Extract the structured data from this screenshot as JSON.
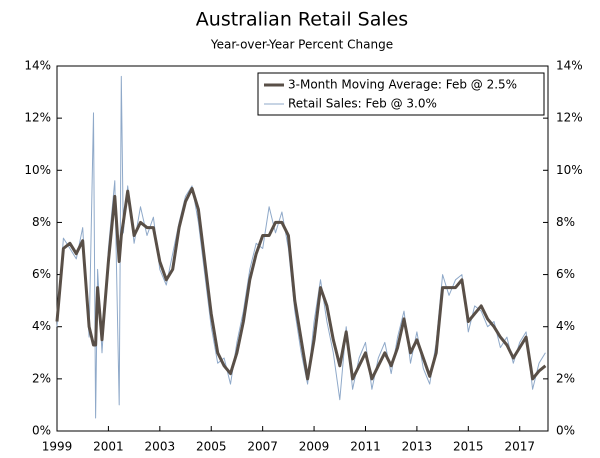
{
  "chart_data": {
    "type": "line",
    "title": "Australian Retail Sales",
    "subtitle": "Year-over-Year Percent Change",
    "x": [
      1999,
      1999.25,
      1999.5,
      1999.75,
      2000,
      2000.25,
      2000.42,
      2000.5,
      2000.58,
      2000.75,
      2001,
      2001.25,
      2001.42,
      2001.5,
      2001.58,
      2001.75,
      2002,
      2002.25,
      2002.5,
      2002.75,
      2003,
      2003.25,
      2003.5,
      2003.75,
      2004,
      2004.25,
      2004.5,
      2004.75,
      2005,
      2005.25,
      2005.5,
      2005.75,
      2006,
      2006.25,
      2006.5,
      2006.75,
      2007,
      2007.25,
      2007.5,
      2007.75,
      2008,
      2008.25,
      2008.5,
      2008.75,
      2009,
      2009.25,
      2009.5,
      2009.75,
      2010,
      2010.25,
      2010.5,
      2010.75,
      2011,
      2011.25,
      2011.5,
      2011.75,
      2012,
      2012.25,
      2012.5,
      2012.75,
      2013,
      2013.25,
      2013.5,
      2013.75,
      2014,
      2014.25,
      2014.5,
      2014.75,
      2015,
      2015.25,
      2015.5,
      2015.75,
      2016,
      2016.25,
      2016.5,
      2016.75,
      2017,
      2017.25,
      2017.5,
      2017.75,
      2018
    ],
    "series": [
      {
        "name": "Retail Sales: Feb @ 3.0%",
        "color": "#8fa9c9",
        "width": 1,
        "values": [
          4.0,
          7.4,
          7.0,
          6.6,
          7.8,
          3.6,
          12.2,
          0.5,
          6.2,
          3.0,
          7.0,
          9.6,
          1.0,
          13.6,
          7.6,
          9.4,
          7.2,
          8.6,
          7.5,
          8.2,
          6.2,
          5.6,
          6.8,
          8.0,
          9.0,
          9.4,
          8.0,
          6.0,
          4.0,
          2.6,
          2.8,
          1.8,
          3.4,
          4.6,
          6.2,
          7.2,
          7.0,
          8.6,
          7.6,
          8.4,
          7.0,
          4.6,
          3.0,
          1.8,
          4.2,
          5.8,
          4.2,
          3.0,
          1.2,
          4.0,
          1.6,
          2.8,
          3.4,
          1.6,
          2.8,
          3.4,
          2.2,
          3.6,
          4.6,
          2.6,
          3.8,
          2.4,
          1.8,
          3.4,
          6.0,
          5.2,
          5.8,
          6.0,
          3.8,
          4.8,
          4.6,
          4.0,
          4.2,
          3.2,
          3.6,
          2.6,
          3.4,
          3.8,
          1.6,
          2.6,
          3.0
        ]
      },
      {
        "name": "3-Month Moving Average: Feb @ 2.5%",
        "color": "#594f47",
        "width": 3,
        "values": [
          4.2,
          7.0,
          7.2,
          6.8,
          7.3,
          4.0,
          3.3,
          3.3,
          5.5,
          3.5,
          6.5,
          9.0,
          6.5,
          7.5,
          8.0,
          9.2,
          7.5,
          8.0,
          7.8,
          7.8,
          6.5,
          5.8,
          6.2,
          7.8,
          8.8,
          9.3,
          8.5,
          6.5,
          4.5,
          3.0,
          2.5,
          2.2,
          3.0,
          4.2,
          5.8,
          6.8,
          7.5,
          7.5,
          8.0,
          8.0,
          7.5,
          5.0,
          3.5,
          2.0,
          3.5,
          5.5,
          4.8,
          3.5,
          2.5,
          3.8,
          2.0,
          2.5,
          3.0,
          2.0,
          2.5,
          3.0,
          2.5,
          3.2,
          4.3,
          3.0,
          3.5,
          2.8,
          2.1,
          3.0,
          5.5,
          5.5,
          5.5,
          5.8,
          4.2,
          4.5,
          4.8,
          4.3,
          4.0,
          3.6,
          3.3,
          2.8,
          3.2,
          3.6,
          2.0,
          2.3,
          2.5
        ]
      }
    ],
    "xlim": [
      1999,
      2018.1
    ],
    "xticks": [
      1999,
      2001,
      2003,
      2005,
      2007,
      2009,
      2011,
      2013,
      2015,
      2017
    ],
    "ylim": [
      0,
      14
    ],
    "yticks": [
      {
        "value": 0,
        "label": "0%"
      },
      {
        "value": 2,
        "label": "2%"
      },
      {
        "value": 4,
        "label": "4%"
      },
      {
        "value": 6,
        "label": "6%"
      },
      {
        "value": 8,
        "label": "8%"
      },
      {
        "value": 10,
        "label": "10%"
      },
      {
        "value": 12,
        "label": "12%"
      },
      {
        "value": 14,
        "label": "14%"
      }
    ],
    "legend": "top-right"
  }
}
